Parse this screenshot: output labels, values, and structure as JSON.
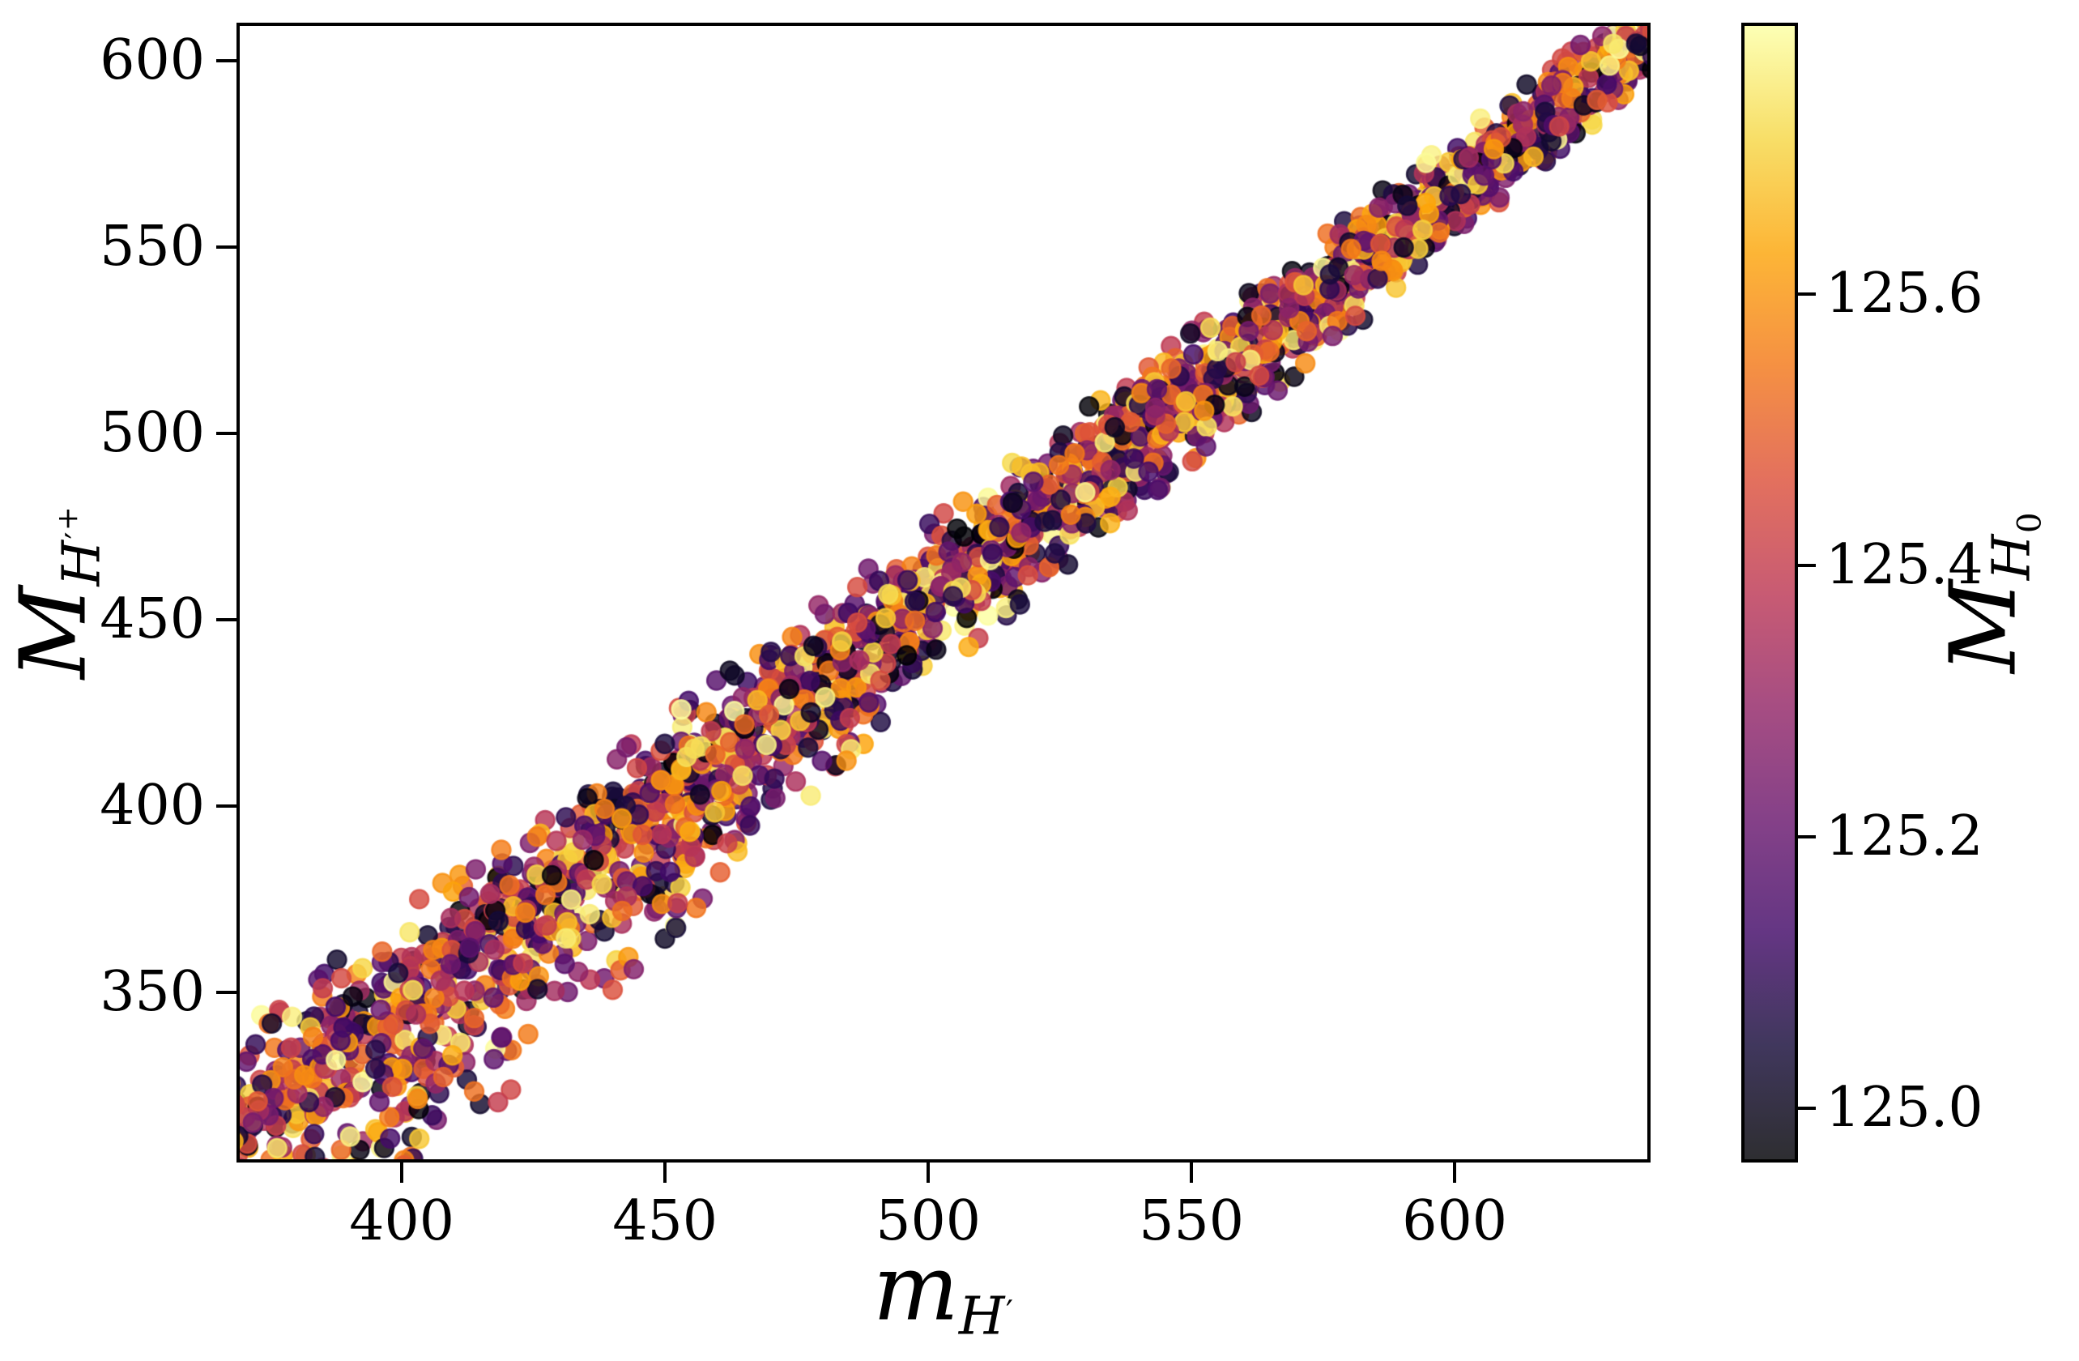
{
  "chart_data": {
    "type": "scatter",
    "title": "",
    "xlabel": "m_{H'}",
    "ylabel": "M_{H'^+}",
    "xlabel_parts": {
      "base": "m",
      "sub_base": "H",
      "sub_prime": "′"
    },
    "ylabel_parts": {
      "base": "M",
      "sub_base": "H",
      "sub_prime": "′",
      "sub_plus": "+"
    },
    "x_tick_labels": [
      "400",
      "450",
      "500",
      "550",
      "600"
    ],
    "x_tick_values": [
      400,
      450,
      500,
      550,
      600
    ],
    "y_tick_labels": [
      "350",
      "400",
      "450",
      "500",
      "550",
      "600"
    ],
    "y_tick_values": [
      350,
      400,
      450,
      500,
      550,
      600
    ],
    "xlim": [
      368.6,
      637.2
    ],
    "ylim": [
      304.3,
      610.2
    ],
    "grid": false,
    "legend": null,
    "colorbar": {
      "label": "M_{H_0}",
      "label_parts": {
        "base": "M",
        "sub_base": "H",
        "sub_sub": "0"
      },
      "tick_labels": [
        "125.0",
        "125.2",
        "125.4",
        "125.6"
      ],
      "tick_values": [
        125.0,
        125.2,
        125.4,
        125.6
      ],
      "vmin": 124.96,
      "vmax": 125.8,
      "colormap": "inferno",
      "alpha": 0.82,
      "stops": [
        [
          0.0,
          [
            0,
            0,
            4
          ]
        ],
        [
          0.1,
          [
            22,
            11,
            57
          ]
        ],
        [
          0.2,
          [
            66,
            10,
            104
          ]
        ],
        [
          0.3,
          [
            106,
            23,
            110
          ]
        ],
        [
          0.4,
          [
            147,
            38,
            103
          ]
        ],
        [
          0.5,
          [
            188,
            55,
            84
          ]
        ],
        [
          0.6,
          [
            221,
            81,
            58
          ]
        ],
        [
          0.7,
          [
            243,
            120,
            25
          ]
        ],
        [
          0.8,
          [
            252,
            165,
            10
          ]
        ],
        [
          0.9,
          [
            246,
            215,
            70
          ]
        ],
        [
          1.0,
          [
            252,
            255,
            164
          ]
        ]
      ]
    },
    "points": {
      "n": 2600,
      "seed": 1337,
      "x_min": 365,
      "x_max": 641,
      "band": {
        "x_ref": 372,
        "y_ref": 313,
        "slope": 1.106
      },
      "sigma_up_start": 13,
      "sigma_up_end": 5,
      "sigma_down_extra_max": 12,
      "sigma_down_ramp_below_x": 500,
      "sigma_down_ramp_width": 130,
      "clamp_gauss": 2.3,
      "marker_radius_px": 11.5,
      "alpha": 0.82,
      "color_random_uniform": true
    }
  }
}
